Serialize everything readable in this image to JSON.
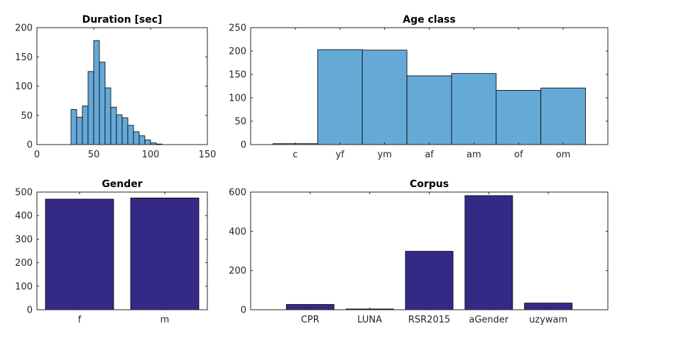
{
  "chart_data": [
    {
      "id": "duration",
      "type": "bar",
      "title": "Duration [sec]",
      "xlim": [
        0,
        150
      ],
      "ylim": [
        0,
        200
      ],
      "xticks": [
        0,
        50,
        100,
        150
      ],
      "yticks": [
        0,
        50,
        100,
        150,
        200
      ],
      "bin_width": 5,
      "bin_edges_start": 30,
      "values": [
        60,
        47,
        66,
        125,
        178,
        141,
        97,
        64,
        51,
        46,
        33,
        22,
        15,
        8,
        3,
        1
      ],
      "fill": "#65a9d7",
      "grid": false
    },
    {
      "id": "age",
      "type": "bar",
      "title": "Age class",
      "categories": [
        "c",
        "yf",
        "ym",
        "af",
        "am",
        "of",
        "om"
      ],
      "values": [
        2,
        203,
        202,
        147,
        152,
        116,
        121
      ],
      "ylim": [
        0,
        250
      ],
      "yticks": [
        0,
        50,
        100,
        150,
        200,
        250
      ],
      "fill": "#65a9d7",
      "bar_width_ratio": 1.0,
      "grid": false
    },
    {
      "id": "gender",
      "type": "bar",
      "title": "Gender",
      "categories": [
        "f",
        "m"
      ],
      "values": [
        470,
        475
      ],
      "ylim": [
        0,
        500
      ],
      "yticks": [
        0,
        100,
        200,
        300,
        400,
        500
      ],
      "fill": "#342a85",
      "bar_width_ratio": 0.8,
      "grid": false
    },
    {
      "id": "corpus",
      "type": "bar",
      "title": "Corpus",
      "categories": [
        "CPR",
        "LUNA",
        "RSR2015",
        "aGender",
        "uzywam"
      ],
      "values": [
        27,
        4,
        298,
        582,
        34
      ],
      "ylim": [
        0,
        600
      ],
      "yticks": [
        0,
        200,
        400,
        600
      ],
      "fill": "#342a85",
      "bar_width_ratio": 0.8,
      "grid": false
    }
  ]
}
